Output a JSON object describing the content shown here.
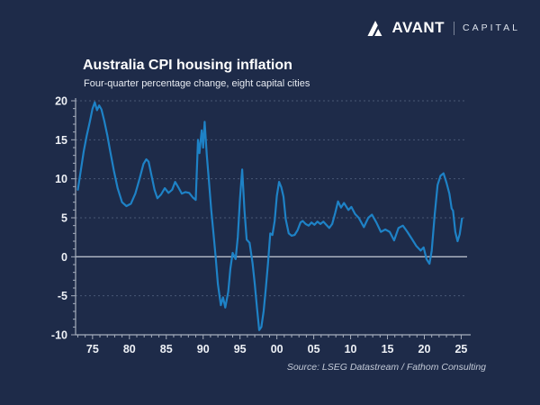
{
  "brand": {
    "name": "AVANT",
    "suffix": "CAPITAL",
    "icon": "avant-mountain-icon"
  },
  "title": "Australia CPI housing inflation",
  "subtitle": "Four-quarter percentage change, eight capital cities",
  "source": "Source: LSEG Datastream / Fathom Consulting",
  "colors": {
    "background": "#1e2b49",
    "line": "#1e82c6",
    "grid": "#6e7d99",
    "zero_line": "#b6bdc9",
    "axis": "#a6aebd",
    "tick_text": "#eef1f6",
    "title_text": "#ffffff",
    "subtitle_text": "#e8ecf3",
    "source_text": "#c3cad7"
  },
  "chart_data": {
    "type": "line",
    "title": "Australia CPI housing inflation",
    "subtitle": "Four-quarter percentage change, eight capital cities",
    "xlabel": "",
    "ylabel": "",
    "xlim": [
      1972.7,
      2025.8
    ],
    "ylim": [
      -10,
      20
    ],
    "x_ticks": [
      1975,
      1980,
      1985,
      1990,
      1995,
      2000,
      2005,
      2010,
      2015,
      2020,
      2025
    ],
    "x_tick_labels": [
      "75",
      "80",
      "85",
      "90",
      "95",
      "00",
      "05",
      "10",
      "15",
      "20",
      "25"
    ],
    "x_minor_step": 1,
    "y_ticks": [
      -10,
      -5,
      0,
      5,
      10,
      15,
      20
    ],
    "y_tick_labels": [
      "-10",
      "-5",
      "0",
      "5",
      "10",
      "15",
      "20"
    ],
    "y_minor_step": 1,
    "grid": "horizontal-dashed",
    "zero_line": true,
    "legend": "none",
    "series": [
      {
        "name": "Australia CPI housing inflation (4-qtr % change, eight capital cities)",
        "points": [
          [
            1973.0,
            8.6
          ],
          [
            1973.4,
            11.0
          ],
          [
            1973.8,
            13.5
          ],
          [
            1974.2,
            15.5
          ],
          [
            1974.6,
            17.2
          ],
          [
            1975.0,
            19.0
          ],
          [
            1975.3,
            19.8
          ],
          [
            1975.6,
            18.8
          ],
          [
            1975.9,
            19.4
          ],
          [
            1976.2,
            18.9
          ],
          [
            1976.6,
            17.4
          ],
          [
            1977.0,
            15.6
          ],
          [
            1977.4,
            13.5
          ],
          [
            1977.9,
            11.0
          ],
          [
            1978.4,
            8.8
          ],
          [
            1979.0,
            7.0
          ],
          [
            1979.6,
            6.5
          ],
          [
            1980.2,
            6.8
          ],
          [
            1980.8,
            8.1
          ],
          [
            1981.4,
            10.1
          ],
          [
            1981.9,
            11.9
          ],
          [
            1982.3,
            12.5
          ],
          [
            1982.6,
            12.2
          ],
          [
            1983.0,
            10.4
          ],
          [
            1983.4,
            8.6
          ],
          [
            1983.8,
            7.5
          ],
          [
            1984.3,
            8.0
          ],
          [
            1984.8,
            8.8
          ],
          [
            1985.3,
            8.2
          ],
          [
            1985.8,
            8.6
          ],
          [
            1986.2,
            9.6
          ],
          [
            1986.7,
            8.8
          ],
          [
            1987.1,
            8.1
          ],
          [
            1987.6,
            8.3
          ],
          [
            1988.1,
            8.2
          ],
          [
            1988.6,
            7.6
          ],
          [
            1989.0,
            7.3
          ],
          [
            1989.3,
            15.0
          ],
          [
            1989.5,
            13.3
          ],
          [
            1989.8,
            16.2
          ],
          [
            1990.0,
            14.0
          ],
          [
            1990.2,
            17.3
          ],
          [
            1990.5,
            13.0
          ],
          [
            1990.8,
            9.5
          ],
          [
            1991.1,
            6.0
          ],
          [
            1991.4,
            3.0
          ],
          [
            1991.7,
            0.0
          ],
          [
            1992.0,
            -3.5
          ],
          [
            1992.4,
            -6.2
          ],
          [
            1992.7,
            -5.2
          ],
          [
            1993.0,
            -6.5
          ],
          [
            1993.4,
            -4.5
          ],
          [
            1993.7,
            -1.5
          ],
          [
            1994.0,
            0.5
          ],
          [
            1994.4,
            -0.3
          ],
          [
            1994.7,
            2.5
          ],
          [
            1995.0,
            7.5
          ],
          [
            1995.3,
            11.2
          ],
          [
            1995.6,
            6.0
          ],
          [
            1995.9,
            2.2
          ],
          [
            1996.3,
            1.8
          ],
          [
            1996.7,
            -0.8
          ],
          [
            1997.0,
            -3.5
          ],
          [
            1997.3,
            -6.5
          ],
          [
            1997.6,
            -9.4
          ],
          [
            1997.9,
            -9.0
          ],
          [
            1998.2,
            -7.0
          ],
          [
            1998.5,
            -4.0
          ],
          [
            1998.8,
            -0.8
          ],
          [
            1999.1,
            3.0
          ],
          [
            1999.4,
            2.8
          ],
          [
            1999.7,
            4.6
          ],
          [
            2000.0,
            7.8
          ],
          [
            2000.3,
            9.6
          ],
          [
            2000.6,
            8.9
          ],
          [
            2000.9,
            7.7
          ],
          [
            2001.2,
            4.8
          ],
          [
            2001.6,
            3.0
          ],
          [
            2002.0,
            2.7
          ],
          [
            2002.4,
            2.8
          ],
          [
            2002.8,
            3.4
          ],
          [
            2003.2,
            4.4
          ],
          [
            2003.5,
            4.6
          ],
          [
            2003.9,
            4.2
          ],
          [
            2004.3,
            4.0
          ],
          [
            2004.7,
            4.4
          ],
          [
            2005.1,
            4.1
          ],
          [
            2005.5,
            4.5
          ],
          [
            2005.9,
            4.2
          ],
          [
            2006.3,
            4.5
          ],
          [
            2006.7,
            4.1
          ],
          [
            2007.1,
            3.7
          ],
          [
            2007.5,
            4.2
          ],
          [
            2007.9,
            5.6
          ],
          [
            2008.3,
            7.1
          ],
          [
            2008.7,
            6.3
          ],
          [
            2009.1,
            6.9
          ],
          [
            2009.7,
            6.0
          ],
          [
            2010.1,
            6.4
          ],
          [
            2010.6,
            5.5
          ],
          [
            2011.1,
            5.0
          ],
          [
            2011.8,
            3.8
          ],
          [
            2012.4,
            5.0
          ],
          [
            2012.9,
            5.4
          ],
          [
            2013.5,
            4.4
          ],
          [
            2014.1,
            3.2
          ],
          [
            2014.7,
            3.5
          ],
          [
            2015.3,
            3.2
          ],
          [
            2015.9,
            2.1
          ],
          [
            2016.5,
            3.7
          ],
          [
            2017.1,
            4.0
          ],
          [
            2017.7,
            3.2
          ],
          [
            2018.3,
            2.3
          ],
          [
            2018.9,
            1.4
          ],
          [
            2019.5,
            0.8
          ],
          [
            2019.9,
            1.2
          ],
          [
            2020.3,
            -0.3
          ],
          [
            2020.7,
            -0.9
          ],
          [
            2021.0,
            0.8
          ],
          [
            2021.4,
            5.4
          ],
          [
            2021.8,
            9.2
          ],
          [
            2022.2,
            10.4
          ],
          [
            2022.6,
            10.7
          ],
          [
            2023.0,
            9.5
          ],
          [
            2023.4,
            8.1
          ],
          [
            2023.7,
            6.2
          ],
          [
            2023.9,
            5.9
          ],
          [
            2024.2,
            3.2
          ],
          [
            2024.5,
            2.0
          ],
          [
            2024.8,
            2.9
          ],
          [
            2025.1,
            4.9
          ]
        ]
      }
    ]
  }
}
